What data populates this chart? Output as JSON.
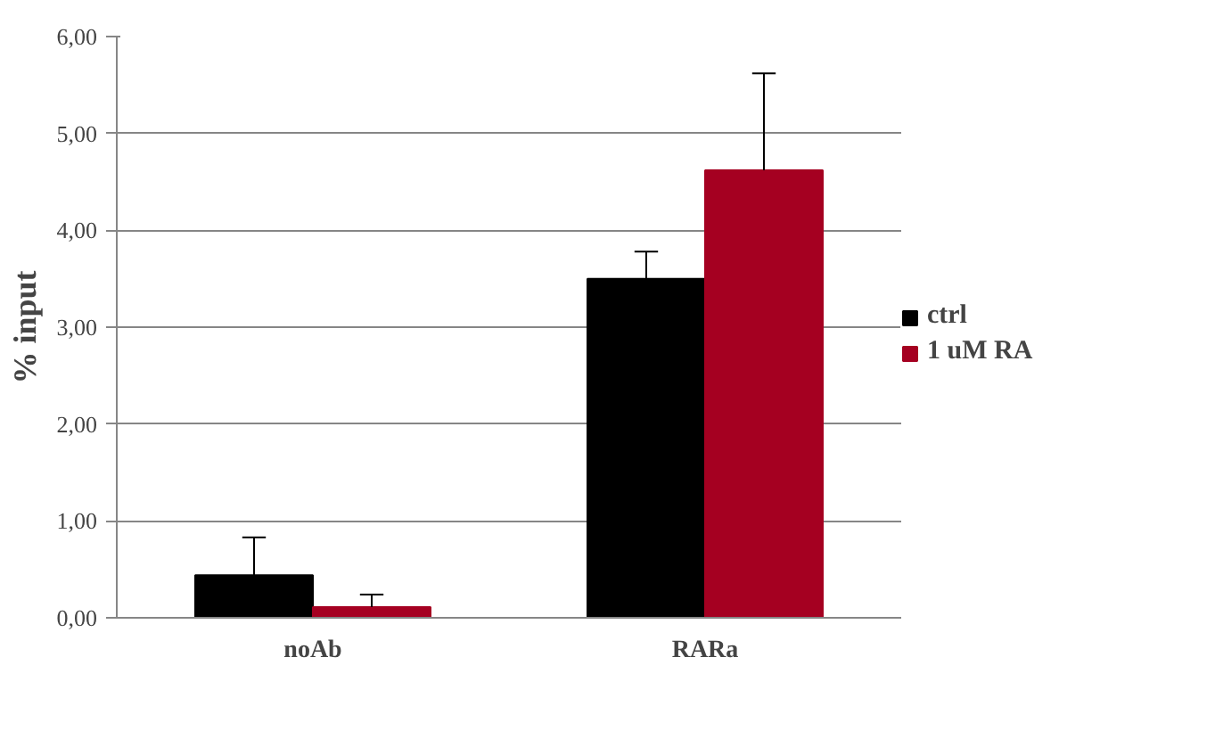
{
  "chart_data": {
    "type": "bar",
    "ylabel": "% input",
    "categories": [
      "noAb",
      "RARa"
    ],
    "series": [
      {
        "name": "ctrl",
        "color": "#000000",
        "values": [
          0.44,
          3.5
        ],
        "errors": [
          [
            0.44,
            0.83
          ],
          [
            3.5,
            3.78
          ]
        ]
      },
      {
        "name": "1 uM RA",
        "color": "#a50021",
        "values": [
          0.11,
          4.62
        ],
        "errors": [
          [
            0.11,
            0.24
          ],
          [
            4.62,
            5.62
          ]
        ]
      }
    ],
    "ylim": [
      0,
      6
    ],
    "yticks": [
      {
        "value": 0,
        "label": "0,00"
      },
      {
        "value": 1,
        "label": "1,00"
      },
      {
        "value": 2,
        "label": "2,00"
      },
      {
        "value": 3,
        "label": "3,00"
      },
      {
        "value": 4,
        "label": "4,00"
      },
      {
        "value": 5,
        "label": "5,00"
      },
      {
        "value": 6,
        "label": "6,00"
      }
    ],
    "grid": "y",
    "legend": "right"
  }
}
